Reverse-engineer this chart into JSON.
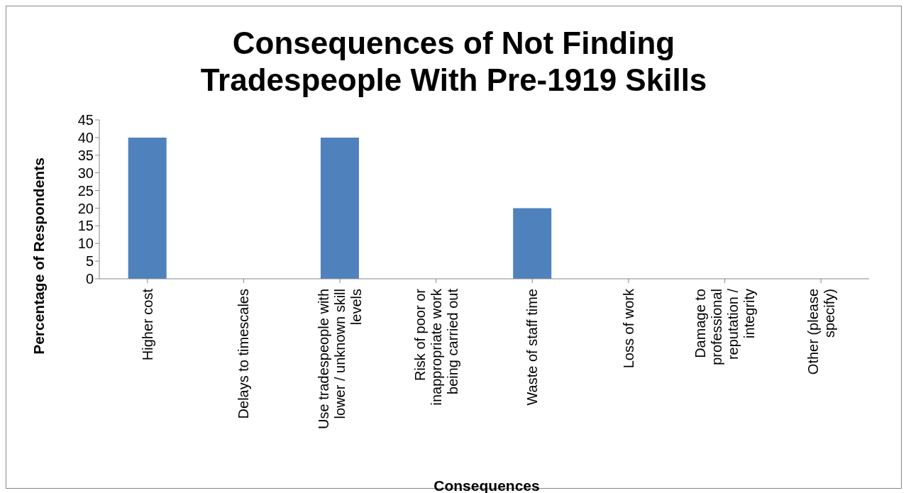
{
  "chart_data": {
    "type": "bar",
    "title": "Consequences of Not Finding Tradespeople With Pre-1919 Skills",
    "xlabel": "Consequences",
    "ylabel": "Percentage of Respondents",
    "categories": [
      "Higher cost",
      "Delays to timescales",
      "Use tradespeople with lower / unknown skill levels",
      "Risk of poor or inappropriate work being carried out",
      "Waste of staff time",
      "Loss of work",
      "Damage to professional reputation / integrity",
      "Other (please specify)"
    ],
    "values": [
      40,
      0,
      40,
      0,
      20,
      0,
      0,
      0
    ],
    "color": "#4f81bd",
    "ylim": [
      0,
      45
    ],
    "yticks": [
      0,
      5,
      10,
      15,
      20,
      25,
      30,
      35,
      40,
      45
    ],
    "grid": false,
    "legend": false
  }
}
